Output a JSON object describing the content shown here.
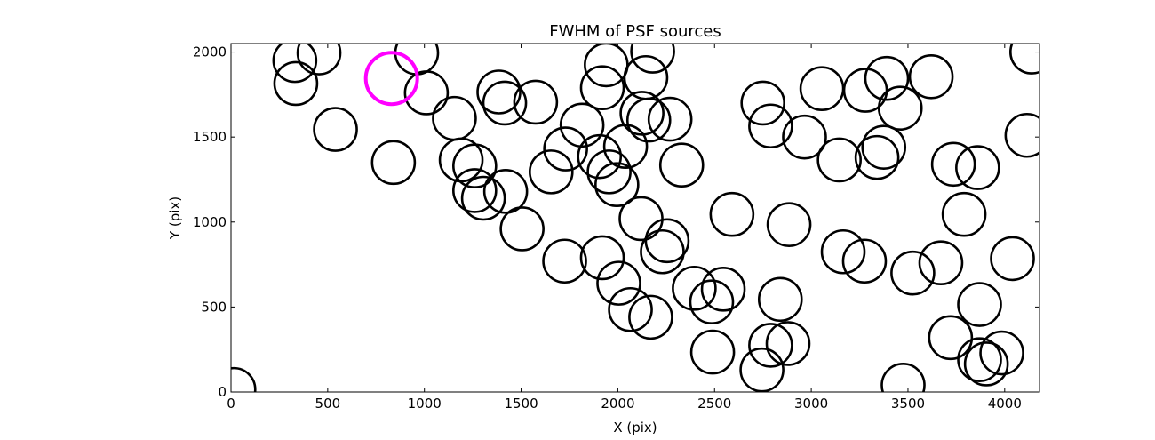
{
  "chart_data": {
    "type": "scatter",
    "title": "FWHM of PSF sources",
    "xlabel": "X (pix)",
    "ylabel": "Y (pix)",
    "xlim": [
      0,
      4180
    ],
    "ylim": [
      0,
      2050
    ],
    "x_ticks": [
      0,
      500,
      1000,
      1500,
      2000,
      2500,
      3000,
      3500,
      4000
    ],
    "y_ticks": [
      0,
      500,
      1000,
      1500,
      2000
    ],
    "grid": false,
    "marker": "open-circle",
    "colors": {
      "default": "#000000",
      "highlight": "#ff00ff"
    },
    "highlighted_point": {
      "x": 830,
      "y": 1845
    },
    "points": [
      {
        "x": 15,
        "y": 15
      },
      {
        "x": 330,
        "y": 1950
      },
      {
        "x": 455,
        "y": 1995
      },
      {
        "x": 335,
        "y": 1815
      },
      {
        "x": 540,
        "y": 1545
      },
      {
        "x": 840,
        "y": 1350
      },
      {
        "x": 960,
        "y": 1995
      },
      {
        "x": 1010,
        "y": 1760
      },
      {
        "x": 1155,
        "y": 1610
      },
      {
        "x": 1190,
        "y": 1365
      },
      {
        "x": 1260,
        "y": 1330
      },
      {
        "x": 1260,
        "y": 1185
      },
      {
        "x": 1305,
        "y": 1140
      },
      {
        "x": 1420,
        "y": 1180
      },
      {
        "x": 1385,
        "y": 1765
      },
      {
        "x": 1415,
        "y": 1700
      },
      {
        "x": 1575,
        "y": 1705
      },
      {
        "x": 1505,
        "y": 960
      },
      {
        "x": 1655,
        "y": 1295
      },
      {
        "x": 1730,
        "y": 1430
      },
      {
        "x": 1815,
        "y": 1570
      },
      {
        "x": 1725,
        "y": 770
      },
      {
        "x": 1905,
        "y": 1385
      },
      {
        "x": 1955,
        "y": 1295
      },
      {
        "x": 1995,
        "y": 1220
      },
      {
        "x": 2040,
        "y": 1445
      },
      {
        "x": 1940,
        "y": 1925
      },
      {
        "x": 1920,
        "y": 1790
      },
      {
        "x": 1920,
        "y": 790
      },
      {
        "x": 2005,
        "y": 640
      },
      {
        "x": 2065,
        "y": 485
      },
      {
        "x": 2120,
        "y": 1020
      },
      {
        "x": 2125,
        "y": 1640
      },
      {
        "x": 2145,
        "y": 1850
      },
      {
        "x": 2160,
        "y": 1600
      },
      {
        "x": 2180,
        "y": 2005
      },
      {
        "x": 2270,
        "y": 1605
      },
      {
        "x": 2170,
        "y": 440
      },
      {
        "x": 2230,
        "y": 825
      },
      {
        "x": 2255,
        "y": 890
      },
      {
        "x": 2330,
        "y": 1335
      },
      {
        "x": 2395,
        "y": 610
      },
      {
        "x": 2485,
        "y": 530
      },
      {
        "x": 2545,
        "y": 605
      },
      {
        "x": 2490,
        "y": 235
      },
      {
        "x": 2590,
        "y": 1045
      },
      {
        "x": 2750,
        "y": 1700
      },
      {
        "x": 2790,
        "y": 1565
      },
      {
        "x": 2745,
        "y": 130
      },
      {
        "x": 2790,
        "y": 275
      },
      {
        "x": 2840,
        "y": 545
      },
      {
        "x": 2885,
        "y": 985
      },
      {
        "x": 2880,
        "y": 285
      },
      {
        "x": 2965,
        "y": 1500
      },
      {
        "x": 3055,
        "y": 1785
      },
      {
        "x": 3145,
        "y": 1365
      },
      {
        "x": 3165,
        "y": 825
      },
      {
        "x": 3275,
        "y": 770
      },
      {
        "x": 3280,
        "y": 1775
      },
      {
        "x": 3340,
        "y": 1380
      },
      {
        "x": 3375,
        "y": 1440
      },
      {
        "x": 3390,
        "y": 1845
      },
      {
        "x": 3460,
        "y": 1670
      },
      {
        "x": 3475,
        "y": 40
      },
      {
        "x": 3525,
        "y": 700
      },
      {
        "x": 3620,
        "y": 1855
      },
      {
        "x": 3670,
        "y": 760
      },
      {
        "x": 3720,
        "y": 320
      },
      {
        "x": 3735,
        "y": 1340
      },
      {
        "x": 3790,
        "y": 1045
      },
      {
        "x": 3860,
        "y": 1320
      },
      {
        "x": 3870,
        "y": 515
      },
      {
        "x": 3870,
        "y": 190
      },
      {
        "x": 3905,
        "y": 165
      },
      {
        "x": 3985,
        "y": 230
      },
      {
        "x": 4040,
        "y": 785
      },
      {
        "x": 4115,
        "y": 1510
      },
      {
        "x": 4140,
        "y": 2000
      }
    ]
  }
}
